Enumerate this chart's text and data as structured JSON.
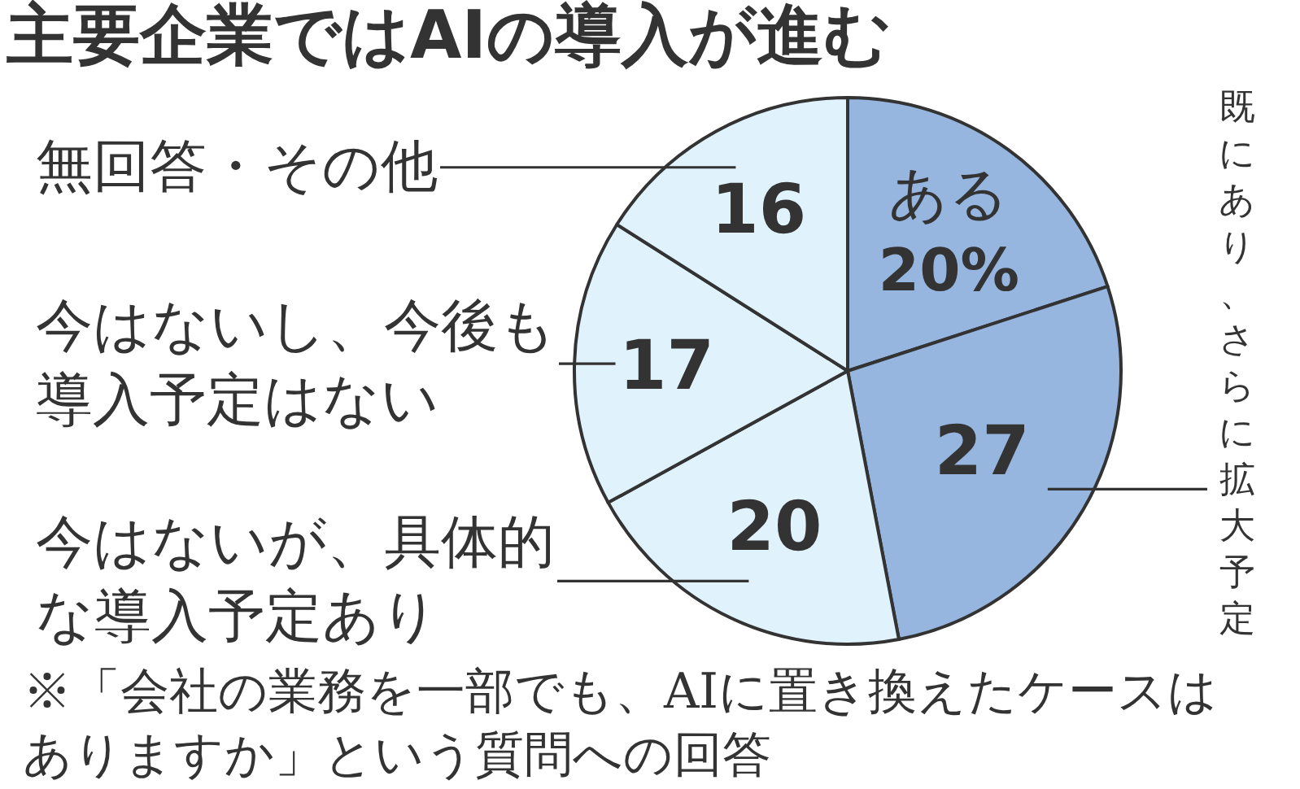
{
  "chart_data": {
    "type": "pie",
    "title": "主要企業ではAIの導入が進む",
    "categories": [
      "ある",
      "既にあり、さらに拡大予定",
      "今はないが、具体的な導入予定あり",
      "今はないし、今後も導入予定はない",
      "無回答・その他"
    ],
    "values": [
      20,
      27,
      20,
      17,
      16
    ],
    "colors": [
      "#96b6e0",
      "#96b6e0",
      "#e0f2fc",
      "#e0f2fc",
      "#e0f2fc"
    ],
    "value_labels": [
      "20%",
      "27",
      "20",
      "17",
      "16"
    ],
    "annotations": [
      "※「会社の業務を一部でも、AIに置き換えたケースはありますか」という質問への回答"
    ]
  }
}
